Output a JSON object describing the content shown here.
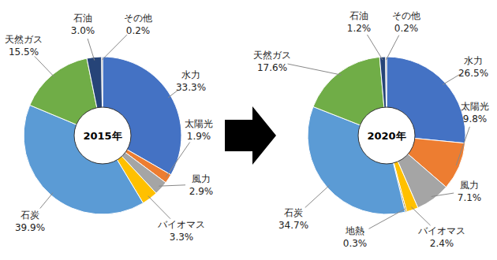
{
  "chart_data": [
    {
      "type": "pie",
      "title": "2015年",
      "categories": [
        "水力",
        "太陽光",
        "風力",
        "バイオマス",
        "石炭",
        "天然ガス",
        "石油",
        "その他"
      ],
      "values": [
        33.3,
        1.9,
        2.9,
        3.3,
        39.9,
        15.5,
        3.0,
        0.2
      ],
      "value_labels": [
        "33.3%",
        "1.9%",
        "2.9%",
        "3.3%",
        "39.9%",
        "15.5%",
        "3.0%",
        "0.2%"
      ],
      "colors": [
        "#4472c4",
        "#ed7d31",
        "#a5a5a5",
        "#ffc000",
        "#5b9bd5",
        "#70ad47",
        "#264478",
        "#636363"
      ],
      "data_labels": true
    },
    {
      "type": "pie",
      "title": "2020年",
      "categories": [
        "水力",
        "太陽光",
        "風力",
        "バイオマス",
        "地熱",
        "石炭",
        "天然ガス",
        "石油",
        "その他"
      ],
      "values": [
        26.5,
        9.8,
        7.1,
        2.4,
        0.3,
        34.7,
        17.6,
        1.2,
        0.2
      ],
      "value_labels": [
        "26.5%",
        "9.8%",
        "7.1%",
        "2.4%",
        "0.3%",
        "34.7%",
        "17.6%",
        "1.2%",
        "0.2%"
      ],
      "colors": [
        "#4472c4",
        "#ed7d31",
        "#a5a5a5",
        "#ffc000",
        "#997300",
        "#5b9bd5",
        "#70ad47",
        "#264478",
        "#636363"
      ],
      "data_labels": true
    }
  ]
}
